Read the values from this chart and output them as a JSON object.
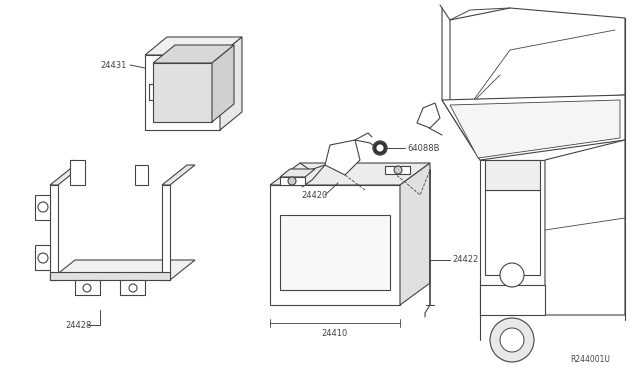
{
  "bg_color": "#ffffff",
  "line_color": "#444444",
  "lw": 0.8,
  "label_fontsize": 6.0,
  "ref_fontsize": 5.5
}
